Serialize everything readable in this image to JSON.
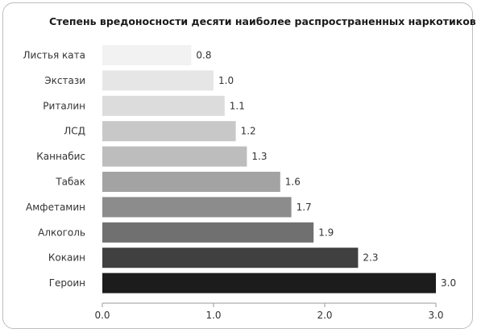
{
  "chart_data": {
    "type": "bar",
    "orientation": "horizontal",
    "title": "Степень вредоносности десяти наиболее распространенных наркотиков",
    "categories": [
      "Листья ката",
      "Экстази",
      "Риталин",
      "ЛСД",
      "Каннабис",
      "Табак",
      "Амфетамин",
      "Алкоголь",
      "Кокаин",
      "Героин"
    ],
    "values": [
      0.8,
      1.0,
      1.1,
      1.2,
      1.3,
      1.6,
      1.7,
      1.9,
      2.3,
      3.0
    ],
    "value_labels": [
      "0.8",
      "1.0",
      "1.1",
      "1.2",
      "1.3",
      "1.6",
      "1.7",
      "1.9",
      "2.3",
      "3.0"
    ],
    "xlim": [
      0,
      3.0
    ],
    "xticks": [
      0,
      1,
      2,
      3
    ],
    "xtick_labels": [
      "0.0",
      "1.0",
      "2.0",
      "3.0"
    ],
    "bar_colors": [
      "#f2f2f2",
      "#e6e6e6",
      "#dcdcdc",
      "#c8c8c8",
      "#bdbdbd",
      "#a3a3a3",
      "#8c8c8c",
      "#707070",
      "#404040",
      "#1c1c1c"
    ],
    "grid": false,
    "legend": "none"
  }
}
